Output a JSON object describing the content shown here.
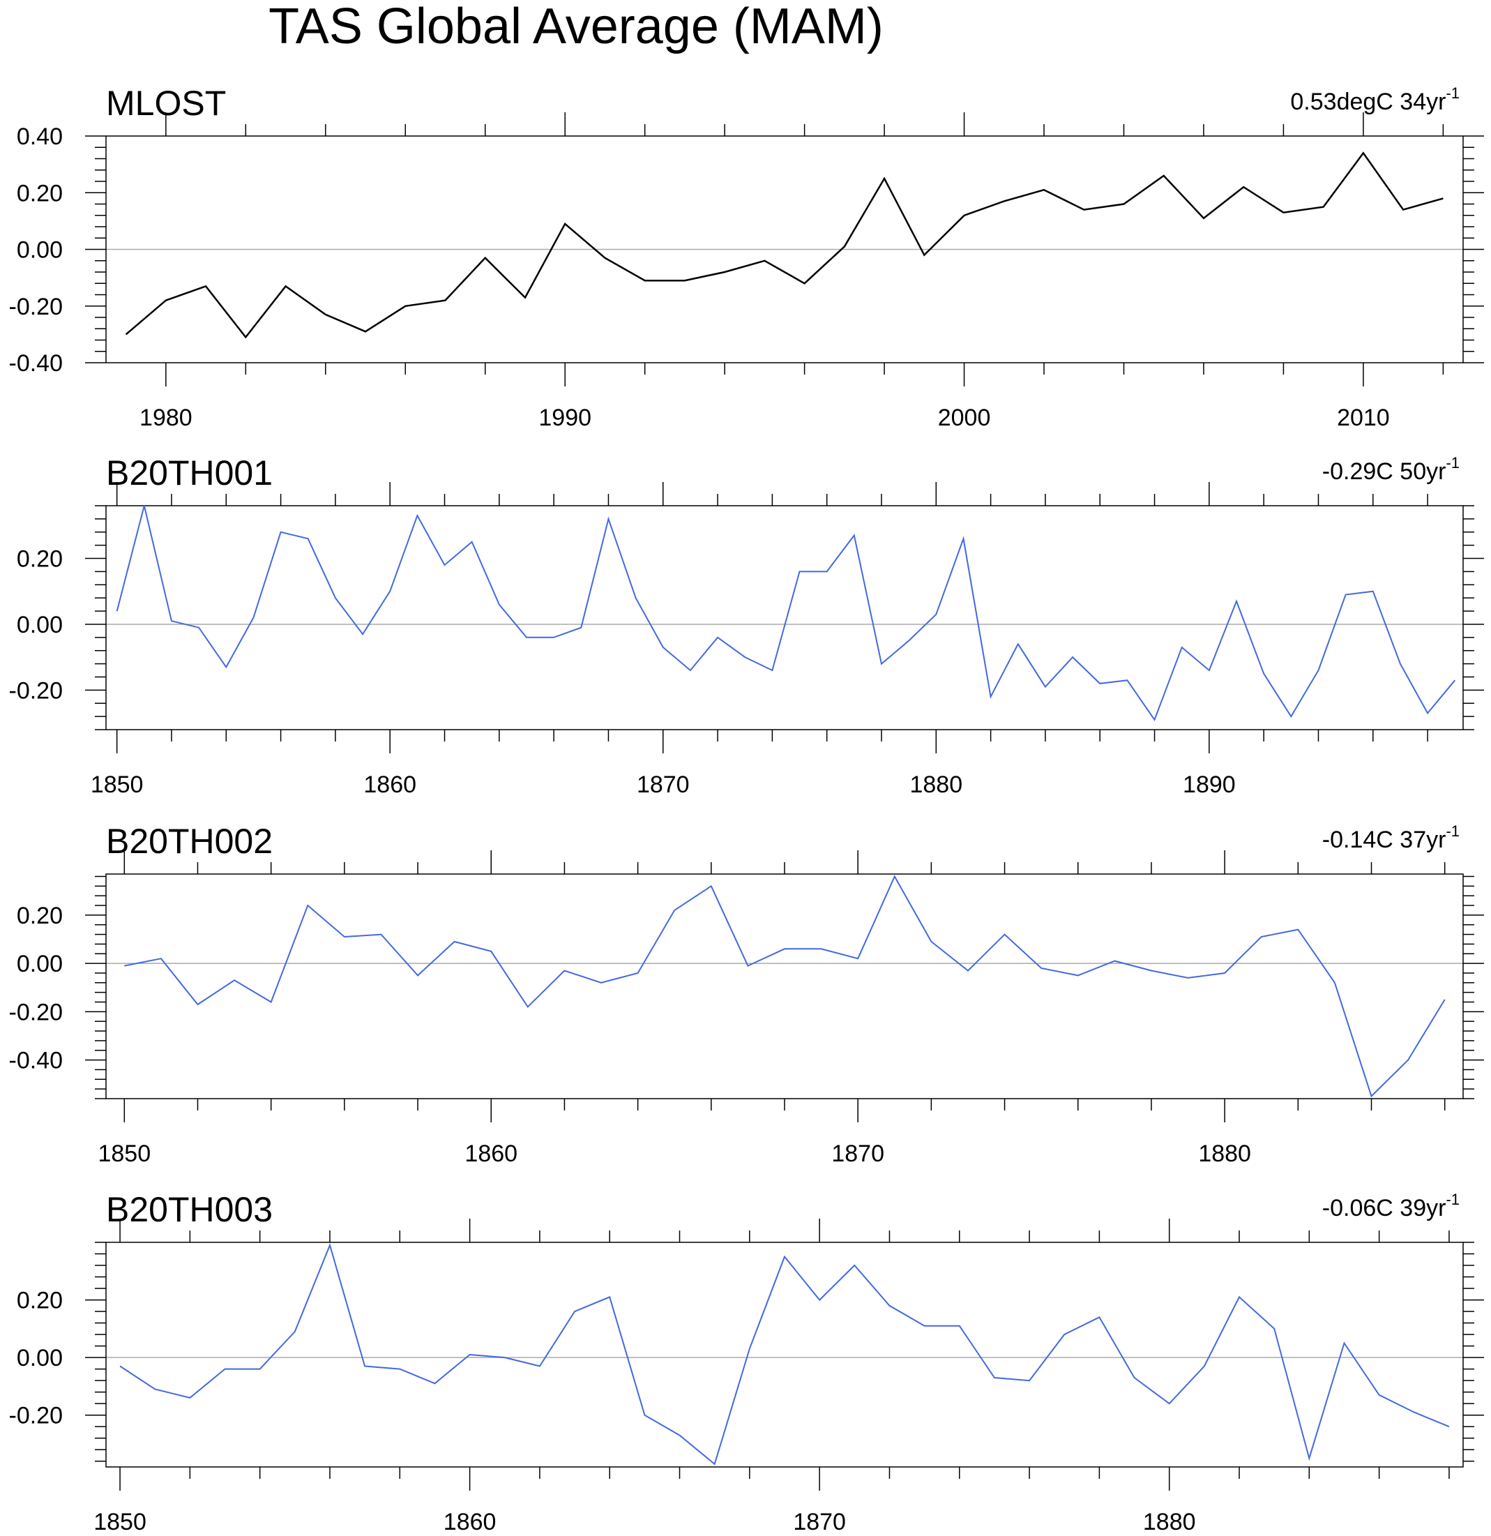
{
  "title": "TAS Global Average (MAM)",
  "colors": {
    "observed": "#000000",
    "model": "#4169E1",
    "zero_line": "#aaaaaa"
  },
  "chart_data": [
    {
      "type": "line",
      "title": "MLOST",
      "trend": {
        "value": "0.53degC 34yr",
        "exp": "-1"
      },
      "x": [
        1979,
        1980,
        1981,
        1982,
        1983,
        1984,
        1985,
        1986,
        1987,
        1988,
        1989,
        1990,
        1991,
        1992,
        1993,
        1994,
        1995,
        1996,
        1997,
        1998,
        1999,
        2000,
        2001,
        2002,
        2003,
        2004,
        2005,
        2006,
        2007,
        2008,
        2009,
        2010,
        2011,
        2012
      ],
      "values": [
        -0.3,
        -0.18,
        -0.13,
        -0.31,
        -0.13,
        -0.23,
        -0.29,
        -0.2,
        -0.18,
        -0.03,
        -0.17,
        0.09,
        -0.03,
        -0.11,
        -0.11,
        -0.08,
        -0.04,
        -0.12,
        0.01,
        0.25,
        -0.02,
        0.12,
        0.17,
        0.21,
        0.14,
        0.16,
        0.26,
        0.11,
        0.22,
        0.13,
        0.15,
        0.34,
        0.14,
        0.18
      ],
      "xlim": [
        1978.5,
        2012.5
      ],
      "ylim": [
        -0.4,
        0.4
      ],
      "xticks": [
        1980,
        1990,
        2000,
        2010
      ],
      "yticks": [
        -0.4,
        -0.2,
        0.0,
        0.2,
        0.4
      ],
      "ytick_labels": [
        "-0.40",
        "-0.20",
        "0.00",
        "0.20",
        "0.40"
      ],
      "color": "#000000"
    },
    {
      "type": "line",
      "title": "B20TH001",
      "trend": {
        "value": "-0.29C 50yr",
        "exp": "-1"
      },
      "x": [
        1850,
        1851,
        1852,
        1853,
        1854,
        1855,
        1856,
        1857,
        1858,
        1859,
        1860,
        1861,
        1862,
        1863,
        1864,
        1865,
        1866,
        1867,
        1868,
        1869,
        1870,
        1871,
        1872,
        1873,
        1874,
        1875,
        1876,
        1877,
        1878,
        1879,
        1880,
        1881,
        1882,
        1883,
        1884,
        1885,
        1886,
        1887,
        1888,
        1889,
        1890,
        1891,
        1892,
        1893,
        1894,
        1895,
        1896,
        1897,
        1898,
        1899
      ],
      "values": [
        0.04,
        0.36,
        0.01,
        -0.01,
        -0.13,
        0.02,
        0.28,
        0.26,
        0.08,
        -0.03,
        0.1,
        0.33,
        0.18,
        0.25,
        0.06,
        -0.04,
        -0.04,
        -0.01,
        0.32,
        0.08,
        -0.07,
        -0.14,
        -0.04,
        -0.1,
        -0.14,
        0.16,
        0.16,
        0.27,
        -0.12,
        -0.05,
        0.03,
        0.26,
        -0.22,
        -0.06,
        -0.19,
        -0.1,
        -0.18,
        -0.17,
        -0.29,
        -0.07,
        -0.14,
        0.07,
        -0.15,
        -0.28,
        -0.14,
        0.09,
        0.1,
        -0.12,
        -0.27,
        -0.17
      ],
      "xlim": [
        1849.6,
        1899.3
      ],
      "ylim": [
        -0.32,
        0.36
      ],
      "xticks": [
        1850,
        1860,
        1870,
        1880,
        1890
      ],
      "yticks": [
        -0.2,
        0.0,
        0.2
      ],
      "ytick_labels": [
        "-0.20",
        "0.00",
        "0.20"
      ],
      "color": "#4169E1"
    },
    {
      "type": "line",
      "title": "B20TH002",
      "trend": {
        "value": "-0.14C 37yr",
        "exp": "-1"
      },
      "x": [
        1850,
        1851,
        1852,
        1853,
        1854,
        1855,
        1856,
        1857,
        1858,
        1859,
        1860,
        1861,
        1862,
        1863,
        1864,
        1865,
        1866,
        1867,
        1868,
        1869,
        1870,
        1871,
        1872,
        1873,
        1874,
        1875,
        1876,
        1877,
        1878,
        1879,
        1880,
        1881,
        1882,
        1883,
        1884,
        1885,
        1886
      ],
      "values": [
        -0.01,
        0.02,
        -0.17,
        -0.07,
        -0.16,
        0.24,
        0.11,
        0.12,
        -0.05,
        0.09,
        0.05,
        -0.18,
        -0.03,
        -0.08,
        -0.04,
        0.22,
        0.32,
        -0.01,
        0.06,
        0.06,
        0.02,
        0.36,
        0.09,
        -0.03,
        0.12,
        -0.02,
        -0.05,
        0.01,
        -0.03,
        -0.06,
        -0.04,
        0.11,
        0.14,
        -0.08,
        -0.55,
        -0.4,
        -0.15
      ],
      "xlim": [
        1849.5,
        1886.5
      ],
      "ylim": [
        -0.56,
        0.37
      ],
      "xticks": [
        1850,
        1860,
        1870,
        1880
      ],
      "yticks": [
        -0.4,
        -0.2,
        0.0,
        0.2
      ],
      "ytick_labels": [
        "-0.40",
        "-0.20",
        "0.00",
        "0.20"
      ],
      "color": "#4169E1"
    },
    {
      "type": "line",
      "title": "B20TH003",
      "trend": {
        "value": "-0.06C 39yr",
        "exp": "-1"
      },
      "x": [
        1850,
        1851,
        1852,
        1853,
        1854,
        1855,
        1856,
        1857,
        1858,
        1859,
        1860,
        1861,
        1862,
        1863,
        1864,
        1865,
        1866,
        1867,
        1868,
        1869,
        1870,
        1871,
        1872,
        1873,
        1874,
        1875,
        1876,
        1877,
        1878,
        1879,
        1880,
        1881,
        1882,
        1883,
        1884,
        1885,
        1886,
        1887,
        1888
      ],
      "values": [
        -0.03,
        -0.11,
        -0.14,
        -0.04,
        -0.04,
        0.09,
        0.39,
        -0.03,
        -0.04,
        -0.09,
        0.01,
        0.0,
        -0.03,
        0.16,
        0.21,
        -0.2,
        -0.27,
        -0.37,
        0.03,
        0.35,
        0.2,
        0.32,
        0.18,
        0.11,
        0.11,
        -0.07,
        -0.08,
        0.08,
        0.14,
        -0.07,
        -0.16,
        -0.03,
        0.21,
        0.1,
        -0.35,
        0.05,
        -0.13,
        -0.19,
        -0.24
      ],
      "xlim": [
        1849.6,
        1888.4
      ],
      "ylim": [
        -0.38,
        0.4
      ],
      "xticks": [
        1850,
        1860,
        1870,
        1880
      ],
      "yticks": [
        -0.2,
        0.0,
        0.2
      ],
      "ytick_labels": [
        "-0.20",
        "0.00",
        "0.20"
      ],
      "color": "#4169E1"
    }
  ]
}
